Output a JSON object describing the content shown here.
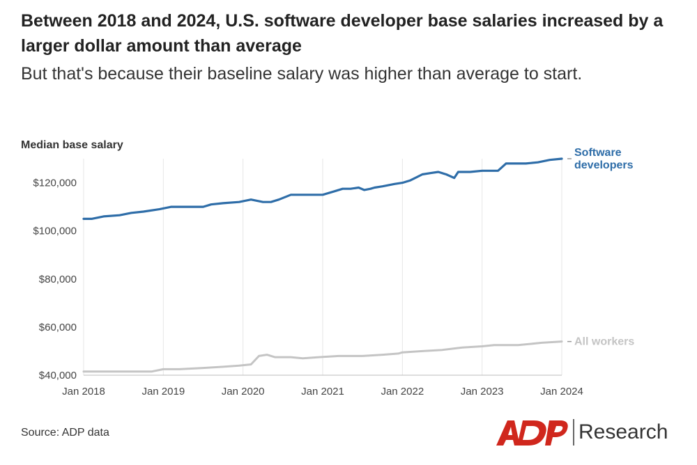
{
  "header": {
    "title": "Between 2018 and 2024, U.S. software developer base salaries increased by a larger dollar amount than average",
    "subtitle": "But that's because their baseline salary was higher than average to start."
  },
  "footer": {
    "source": "Source: ADP data",
    "logo_text": "Research",
    "logo_mark": "ADP"
  },
  "colors": {
    "software": "#2e6da8",
    "all_workers": "#c4c4c4",
    "grid": "#e6e6e6",
    "axis_text": "#444444",
    "logo_red": "#d0271d"
  },
  "chart_data": {
    "type": "line",
    "title": "",
    "ylabel": "Median base salary",
    "xlabel": "",
    "ylim": [
      40000,
      130000
    ],
    "xlim": [
      2018.0,
      2024.0
    ],
    "x_ticks": [
      2018,
      2019,
      2020,
      2021,
      2022,
      2023,
      2024
    ],
    "x_tick_labels": [
      "Jan 2018",
      "Jan 2019",
      "Jan 2020",
      "Jan 2021",
      "Jan 2022",
      "Jan 2023",
      "Jan 2024"
    ],
    "y_ticks": [
      40000,
      60000,
      80000,
      100000,
      120000
    ],
    "y_tick_labels": [
      "$40,000",
      "$60,000",
      "$80,000",
      "$100,000",
      "$120,000"
    ],
    "grid": "vertical",
    "legend": "direct labels at right end of lines",
    "series": [
      {
        "name": "Software developers",
        "label_lines": [
          "Software",
          "developers"
        ],
        "x": [
          2018.0,
          2018.1,
          2018.25,
          2018.45,
          2018.6,
          2018.75,
          2018.95,
          2019.1,
          2019.3,
          2019.5,
          2019.6,
          2019.75,
          2019.95,
          2020.1,
          2020.25,
          2020.35,
          2020.45,
          2020.6,
          2020.75,
          2020.85,
          2021.0,
          2021.15,
          2021.25,
          2021.35,
          2021.45,
          2021.52,
          2021.6,
          2021.65,
          2021.75,
          2021.9,
          2022.0,
          2022.1,
          2022.25,
          2022.35,
          2022.45,
          2022.55,
          2022.65,
          2022.7,
          2022.85,
          2023.0,
          2023.1,
          2023.2,
          2023.3,
          2023.45,
          2023.55,
          2023.7,
          2023.85,
          2024.0
        ],
        "values": [
          105000,
          105000,
          106000,
          106500,
          107500,
          108000,
          109000,
          110000,
          110000,
          110000,
          111000,
          111500,
          112000,
          113000,
          112000,
          112000,
          113000,
          115000,
          115000,
          115000,
          115000,
          116500,
          117500,
          117500,
          118000,
          117000,
          117500,
          118000,
          118500,
          119500,
          120000,
          121000,
          123500,
          124000,
          124500,
          123500,
          122000,
          124500,
          124500,
          125000,
          125000,
          125000,
          128000,
          128000,
          128000,
          128500,
          129500,
          130000
        ]
      },
      {
        "name": "All workers",
        "label_lines": [
          "All workers"
        ],
        "x": [
          2018.0,
          2018.5,
          2018.85,
          2019.0,
          2019.2,
          2019.5,
          2019.75,
          2019.95,
          2020.1,
          2020.2,
          2020.3,
          2020.4,
          2020.6,
          2020.75,
          2020.95,
          2021.2,
          2021.5,
          2021.75,
          2021.95,
          2022.0,
          2022.25,
          2022.5,
          2022.75,
          2023.0,
          2023.15,
          2023.3,
          2023.45,
          2023.6,
          2023.75,
          2024.0
        ],
        "values": [
          41500,
          41500,
          41500,
          42500,
          42500,
          43000,
          43500,
          44000,
          44500,
          48000,
          48500,
          47500,
          47500,
          47000,
          47500,
          48000,
          48000,
          48500,
          49000,
          49500,
          50000,
          50500,
          51500,
          52000,
          52500,
          52500,
          52500,
          53000,
          53500,
          54000
        ]
      }
    ]
  }
}
